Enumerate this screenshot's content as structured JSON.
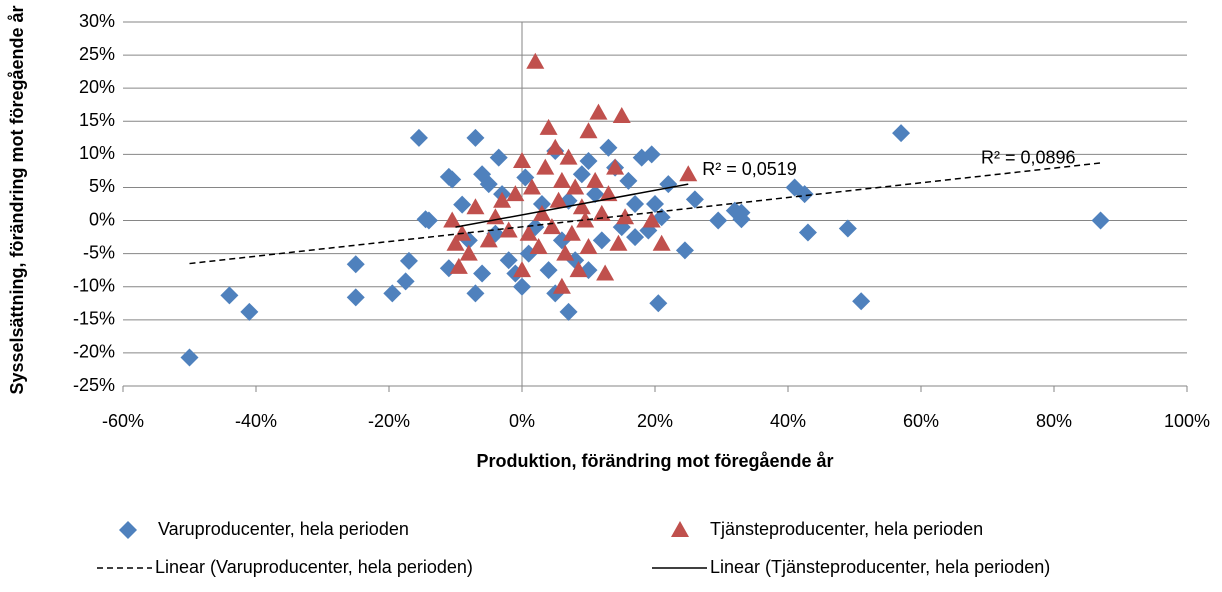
{
  "chart_data": {
    "type": "scatter",
    "xlabel": "Produktion, förändring mot föregående år",
    "ylabel": "Sysselsättning, förändring mot föregående år",
    "xlim": [
      -60,
      100
    ],
    "xticks": [
      {
        "value": -60,
        "label": "-60%"
      },
      {
        "value": -40,
        "label": "-40%"
      },
      {
        "value": -20,
        "label": "-20%"
      },
      {
        "value": 0,
        "label": "0%"
      },
      {
        "value": 20,
        "label": "20%"
      },
      {
        "value": 40,
        "label": "40%"
      },
      {
        "value": 60,
        "label": "60%"
      },
      {
        "value": 80,
        "label": "80%"
      },
      {
        "value": 100,
        "label": "100%"
      }
    ],
    "ylim": [
      -25,
      30
    ],
    "yticks": [
      {
        "value": -25,
        "label": "-25%"
      },
      {
        "value": -20,
        "label": "-20%"
      },
      {
        "value": -15,
        "label": "-15%"
      },
      {
        "value": -10,
        "label": "-10%"
      },
      {
        "value": -5,
        "label": "-5%"
      },
      {
        "value": 0,
        "label": "0%"
      },
      {
        "value": 5,
        "label": "5%"
      },
      {
        "value": 10,
        "label": "10%"
      },
      {
        "value": 15,
        "label": "15%"
      },
      {
        "value": 20,
        "label": "20%"
      },
      {
        "value": 25,
        "label": "25%"
      },
      {
        "value": 30,
        "label": "30%"
      }
    ],
    "grid": true,
    "series": [
      {
        "name": "Varuproducenter, hela perioden",
        "color": "#4f81bd",
        "marker": "diamond",
        "x": [
          -50,
          -44,
          -41,
          -25,
          -25,
          -19.5,
          -17.5,
          -17,
          -15.5,
          -14.5,
          -14,
          -11,
          -10.5,
          -11,
          -9,
          -8,
          -7,
          -7,
          -6,
          -6,
          -5,
          -4,
          -3.5,
          -3,
          -2,
          -1,
          0,
          0.5,
          1,
          2,
          3,
          4,
          5,
          5,
          6,
          7,
          7,
          8,
          9,
          10,
          10,
          11,
          12,
          13,
          14,
          15,
          16,
          17,
          17,
          18,
          19,
          19.5,
          20,
          20.5,
          21,
          22,
          24.5,
          26,
          29.5,
          32,
          33,
          33,
          41,
          42.5,
          43,
          49,
          51,
          57,
          87
        ],
        "values": [
          -20.7,
          -11.3,
          -13.8,
          -6.6,
          -11.6,
          -11,
          -9.2,
          -6.1,
          12.5,
          0.2,
          0,
          6.6,
          6.2,
          -7.2,
          2.4,
          -3,
          12.5,
          -11,
          7,
          -8,
          5.5,
          -2,
          9.5,
          4,
          -6,
          -8,
          -10,
          6.5,
          -5,
          -1,
          2.5,
          -7.5,
          -11,
          10.5,
          -3,
          -13.8,
          3,
          -6,
          7,
          -7.5,
          9,
          4,
          -3,
          11,
          8,
          -1,
          6,
          2.5,
          -2.5,
          9.5,
          -1.5,
          10,
          2.5,
          -12.5,
          0.5,
          5.5,
          -4.5,
          3.2,
          0,
          1.5,
          0.2,
          1.2,
          5,
          4,
          -1.8,
          -1.2,
          -12.2,
          13.2,
          0
        ]
      },
      {
        "name": "Tjänsteproducenter, hela perioden",
        "color": "#c0504d",
        "marker": "triangle",
        "x": [
          -10.5,
          -10,
          -9.5,
          -9,
          -8,
          -7,
          -5,
          -4,
          -3,
          -2,
          -1,
          0,
          0,
          1,
          1.5,
          2,
          2.5,
          3,
          3.5,
          4,
          4.5,
          5,
          5.5,
          6,
          6,
          6.5,
          7,
          7.5,
          8,
          8.5,
          9,
          9.5,
          10,
          10,
          11,
          11.5,
          12,
          12.5,
          13,
          14,
          14.5,
          15,
          15.5,
          19.5,
          21,
          25
        ],
        "values": [
          0,
          -3.5,
          -7,
          -2,
          -5,
          2,
          -3,
          0.5,
          3,
          -1.5,
          4,
          9,
          -7.5,
          -2,
          5,
          24,
          -4,
          1,
          8,
          14,
          -1,
          11,
          3,
          -10,
          6,
          -5,
          9.5,
          -2,
          5,
          -7.5,
          2,
          0,
          13.5,
          -4,
          6,
          16.3,
          1,
          -8,
          4,
          8,
          -3.5,
          15.8,
          0.5,
          0,
          -3.5,
          7
        ]
      }
    ],
    "trendlines": [
      {
        "name": "Linear (Varuproducenter, hela perioden)",
        "label": "R² = 0,0896",
        "color": "#000000",
        "dash": true,
        "x": [
          -50,
          87
        ],
        "values": [
          -6.5,
          8.7
        ]
      },
      {
        "name": "Linear (Tjänsteproducenter, hela perioden)",
        "label": "R² = 0,0519",
        "color": "#000000",
        "dash": false,
        "x": [
          -10,
          25
        ],
        "values": [
          -1,
          5.5
        ]
      }
    ]
  }
}
